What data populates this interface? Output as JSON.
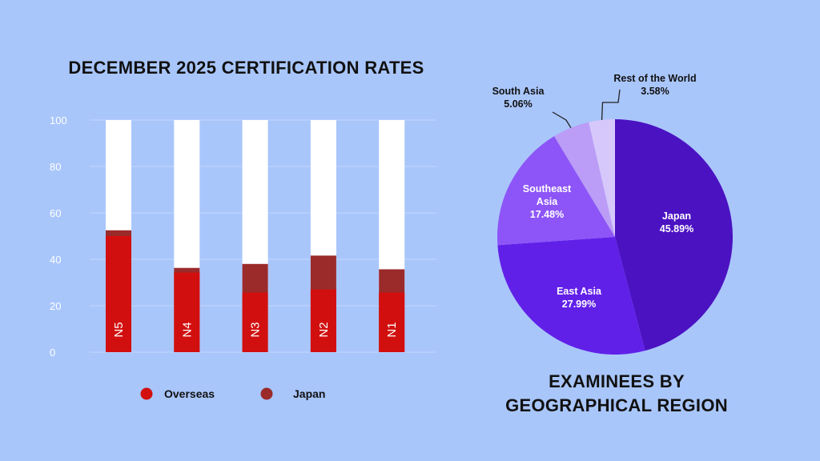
{
  "bar_title": "DECEMBER 2025 CERTIFICATION RATES",
  "pie_title_line1": "EXAMINEES BY",
  "pie_title_line2": "GEOGRAPHICAL REGION",
  "colors": {
    "background": "#a9c6fb",
    "overseas": "#d20f0f",
    "japan": "#9b2a2a",
    "bar_remainder": "#ffffff",
    "pie_slices": [
      "#4b12c2",
      "#6120e8",
      "#8d55f7",
      "#bb9cf6",
      "#d6c8fb"
    ]
  },
  "chart_data": [
    {
      "type": "bar",
      "stacked": true,
      "title": "DECEMBER 2025 CERTIFICATION RATES",
      "categories": [
        "N5",
        "N4",
        "N3",
        "N2",
        "N1"
      ],
      "ylim": [
        0,
        100
      ],
      "yticks": [
        0,
        20,
        40,
        60,
        80,
        100
      ],
      "grid": true,
      "legend_position": "bottom",
      "series": [
        {
          "name": "Japan",
          "values": [
            52.5,
            36.3,
            38.0,
            41.6,
            35.7
          ]
        },
        {
          "name": "Overseas",
          "values": [
            50.0,
            34.3,
            25.7,
            27.0,
            25.7
          ]
        }
      ]
    },
    {
      "type": "pie",
      "title": "EXAMINEES BY GEOGRAPHICAL REGION",
      "slices": [
        {
          "label": "Japan",
          "value": 45.89,
          "display": "45.89%"
        },
        {
          "label": "East Asia",
          "value": 27.99,
          "display": "27.99%"
        },
        {
          "label": "Southeast Asia",
          "value": 17.48,
          "display": "17.48%"
        },
        {
          "label": "South Asia",
          "value": 5.06,
          "display": "5.06%"
        },
        {
          "label": "Rest of the World",
          "value": 3.58,
          "display": "3.58%"
        }
      ]
    }
  ]
}
